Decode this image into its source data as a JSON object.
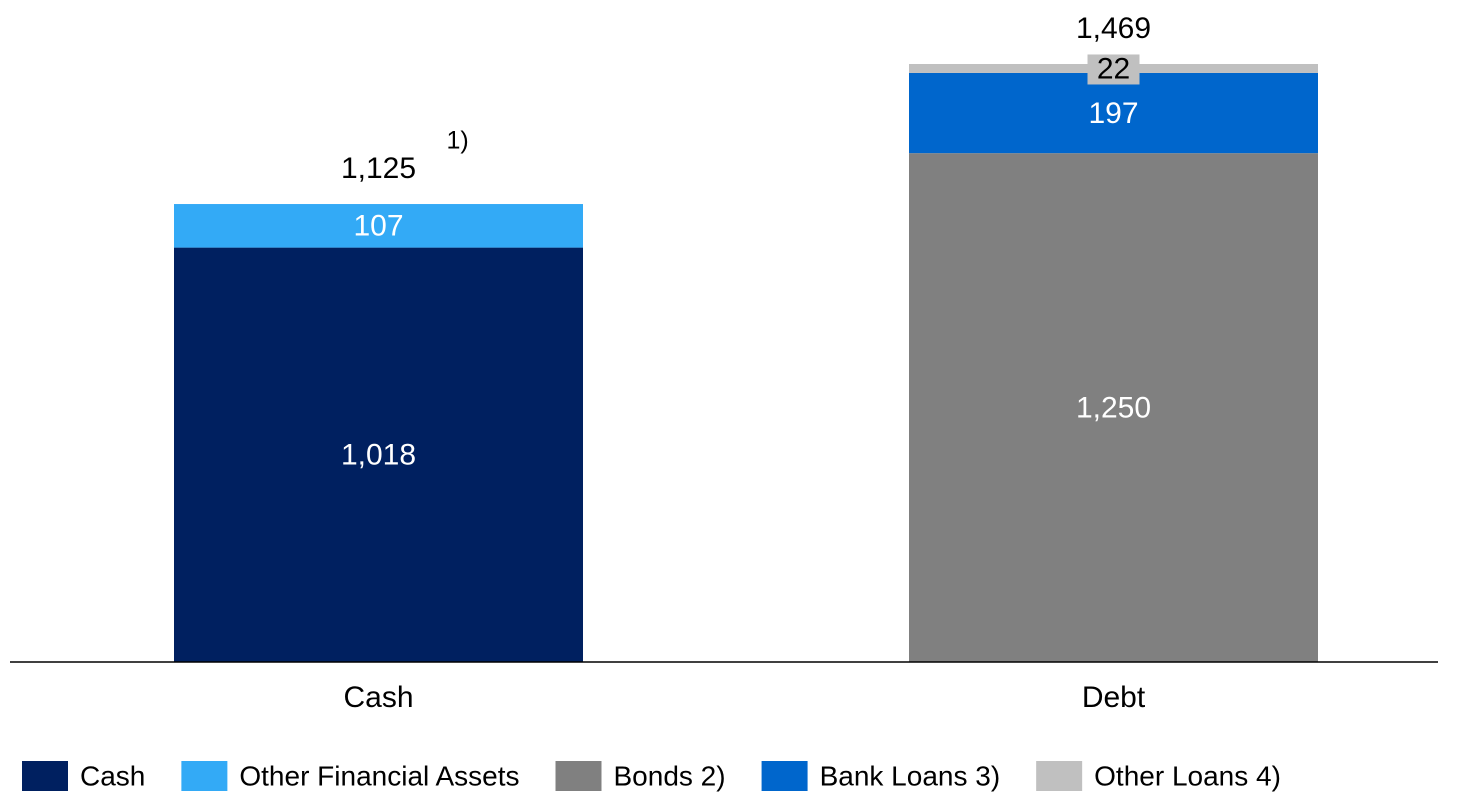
{
  "chart_data": {
    "type": "stacked_bar",
    "categories": [
      "Cash",
      "Debt"
    ],
    "series": [
      {
        "name": "Cash",
        "color": "#002060",
        "values": [
          1018,
          null
        ],
        "value_labels": [
          "1,018",
          null
        ]
      },
      {
        "name": "Other Financial Assets",
        "color": "#33aaf6",
        "values": [
          107,
          null
        ],
        "value_labels": [
          "107",
          null
        ]
      },
      {
        "name": "Bonds 2)",
        "color": "#808080",
        "values": [
          null,
          1250
        ],
        "value_labels": [
          null,
          "1,250"
        ]
      },
      {
        "name": "Bank Loans 3)",
        "color": "#0066cc",
        "values": [
          null,
          197
        ],
        "value_labels": [
          null,
          "197"
        ]
      },
      {
        "name": "Other Loans 4)",
        "color": "#c0c0c0",
        "values": [
          null,
          22
        ],
        "value_labels": [
          null,
          "22"
        ]
      }
    ],
    "totals": [
      1125,
      1469
    ],
    "total_labels": [
      "1,125",
      "1,469"
    ],
    "annotations": [
      {
        "text": "1)",
        "category": 0
      }
    ]
  }
}
